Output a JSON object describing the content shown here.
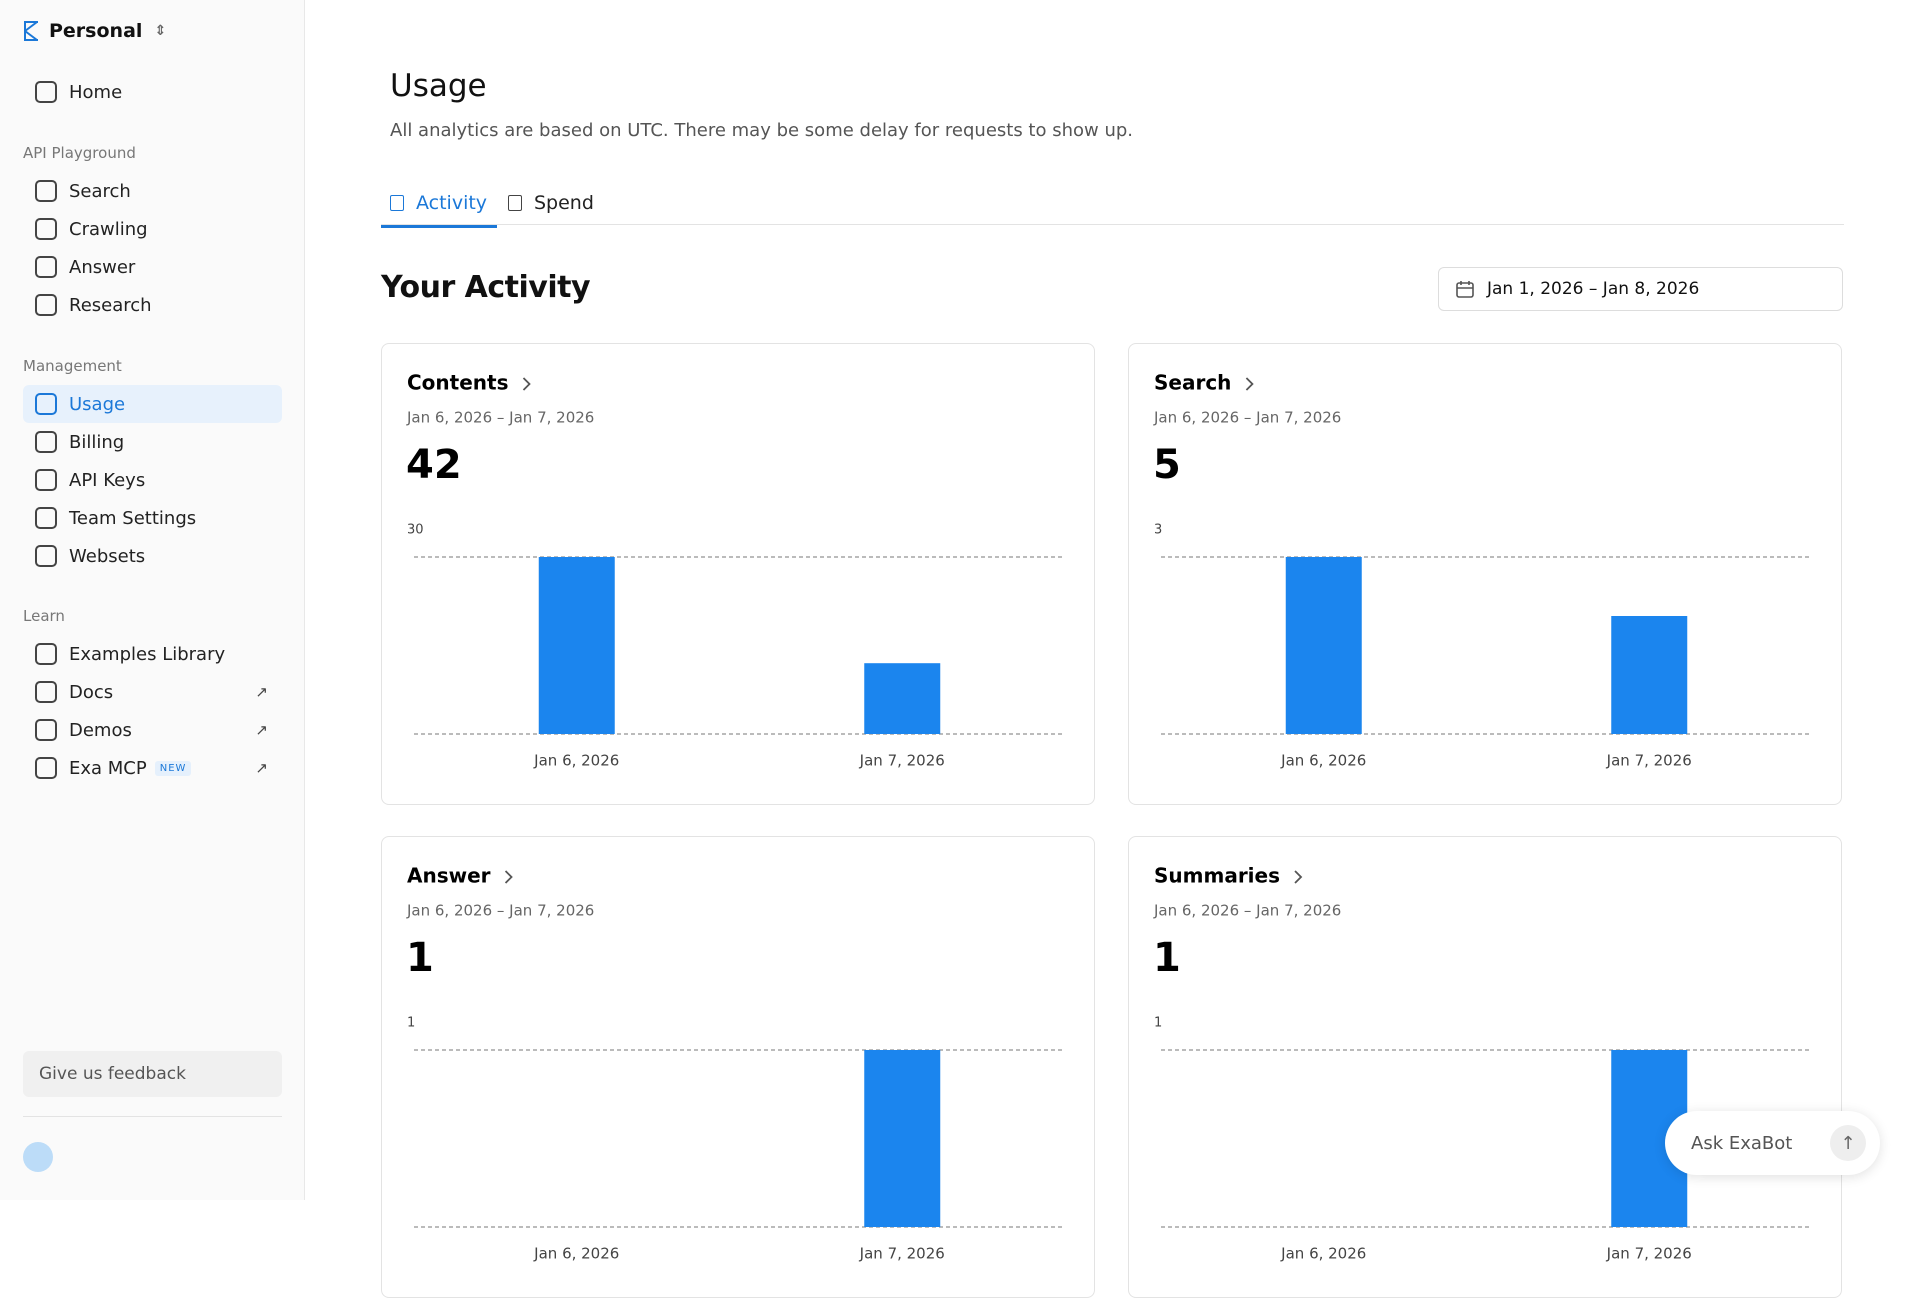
{
  "workspace": "Personal",
  "nav": {
    "home": "Home",
    "sections": [
      {
        "label": "API Playground",
        "items": [
          {
            "label": "Search"
          },
          {
            "label": "Crawling"
          },
          {
            "label": "Answer"
          },
          {
            "label": "Research"
          }
        ]
      },
      {
        "label": "Management",
        "items": [
          {
            "label": "Usage",
            "active": true
          },
          {
            "label": "Billing"
          },
          {
            "label": "API Keys"
          },
          {
            "label": "Team Settings"
          },
          {
            "label": "Websets"
          }
        ]
      },
      {
        "label": "Learn",
        "items": [
          {
            "label": "Examples Library"
          },
          {
            "label": "Docs",
            "external": true
          },
          {
            "label": "Demos",
            "external": true
          },
          {
            "label": "Exa MCP",
            "badge": "NEW",
            "external": true
          }
        ]
      }
    ],
    "feedback": "Give us feedback"
  },
  "header": {
    "title": "Usage",
    "subtitle": "All analytics are based on UTC. There may be some delay for requests to show up."
  },
  "tabs": [
    "Activity",
    "Spend"
  ],
  "activity": {
    "title": "Your Activity",
    "date_range": "Jan 1, 2026 – Jan 8, 2026"
  },
  "cards": [
    {
      "title": "Contents",
      "date_range": "Jan 6, 2026 – Jan 7, 2026",
      "total": 42,
      "chart": {
        "type": "bar",
        "categories": [
          "Jan 6, 2026",
          "Jan 7, 2026"
        ],
        "values": [
          30,
          12
        ],
        "ylim": [
          0,
          30
        ],
        "yticks": [
          30
        ],
        "color": "#1b85ee"
      }
    },
    {
      "title": "Search",
      "date_range": "Jan 6, 2026 – Jan 7, 2026",
      "total": 5,
      "chart": {
        "type": "bar",
        "categories": [
          "Jan 6, 2026",
          "Jan 7, 2026"
        ],
        "values": [
          3,
          2
        ],
        "ylim": [
          0,
          3
        ],
        "yticks": [
          3
        ],
        "color": "#1b85ee"
      }
    },
    {
      "title": "Answer",
      "date_range": "Jan 6, 2026 – Jan 7, 2026",
      "total": 1,
      "chart": {
        "type": "bar",
        "categories": [
          "Jan 6, 2026",
          "Jan 7, 2026"
        ],
        "values": [
          0,
          1
        ],
        "ylim": [
          0,
          1
        ],
        "yticks": [
          1
        ],
        "color": "#1b85ee"
      }
    },
    {
      "title": "Summaries",
      "date_range": "Jan 6, 2026 – Jan 7, 2026",
      "total": 1,
      "chart": {
        "type": "bar",
        "categories": [
          "Jan 6, 2026",
          "Jan 7, 2026"
        ],
        "values": [
          0,
          1
        ],
        "ylim": [
          0,
          1
        ],
        "yticks": [
          1
        ],
        "color": "#1b85ee"
      }
    }
  ],
  "chat": {
    "placeholder": "Ask ExaBot"
  }
}
